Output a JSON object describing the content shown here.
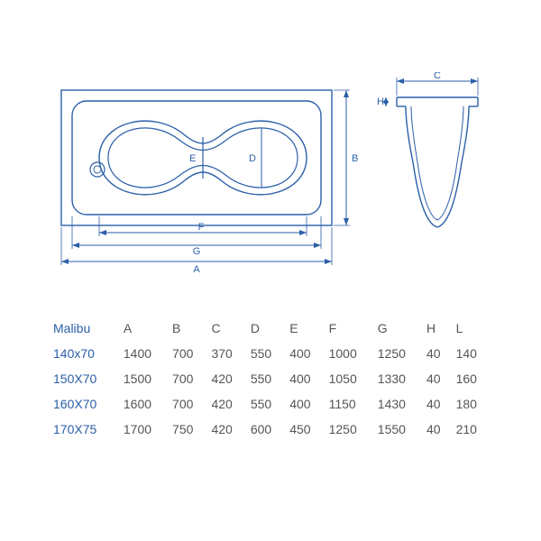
{
  "product_name": "Malibu",
  "diagram": {
    "stroke_color": "#2b5fa8",
    "stroke_width": 1.4,
    "label_color": "#2b5fa8",
    "label_fontsize": 11,
    "labels": {
      "A": "A",
      "B": "B",
      "C": "C",
      "D": "D",
      "E": "E",
      "F": "F",
      "G": "G",
      "H": "H"
    }
  },
  "table": {
    "header_color": "#555555",
    "rowhead_color": "#2b5fa8",
    "cell_color": "#555555",
    "fontsize": 14,
    "columns": [
      "A",
      "B",
      "C",
      "D",
      "E",
      "F",
      "G",
      "H",
      "L"
    ],
    "rows": [
      {
        "name": "140x70",
        "values": [
          "1400",
          "700",
          "370",
          "550",
          "400",
          "1000",
          "1250",
          "40",
          "140"
        ]
      },
      {
        "name": "150X70",
        "values": [
          "1500",
          "700",
          "420",
          "550",
          "400",
          "1050",
          "1330",
          "40",
          "160"
        ]
      },
      {
        "name": "160X70",
        "values": [
          "1600",
          "700",
          "420",
          "550",
          "400",
          "1150",
          "1430",
          "40",
          "180"
        ]
      },
      {
        "name": "170X75",
        "values": [
          "1700",
          "750",
          "420",
          "600",
          "450",
          "1250",
          "1550",
          "40",
          "210"
        ]
      }
    ]
  }
}
